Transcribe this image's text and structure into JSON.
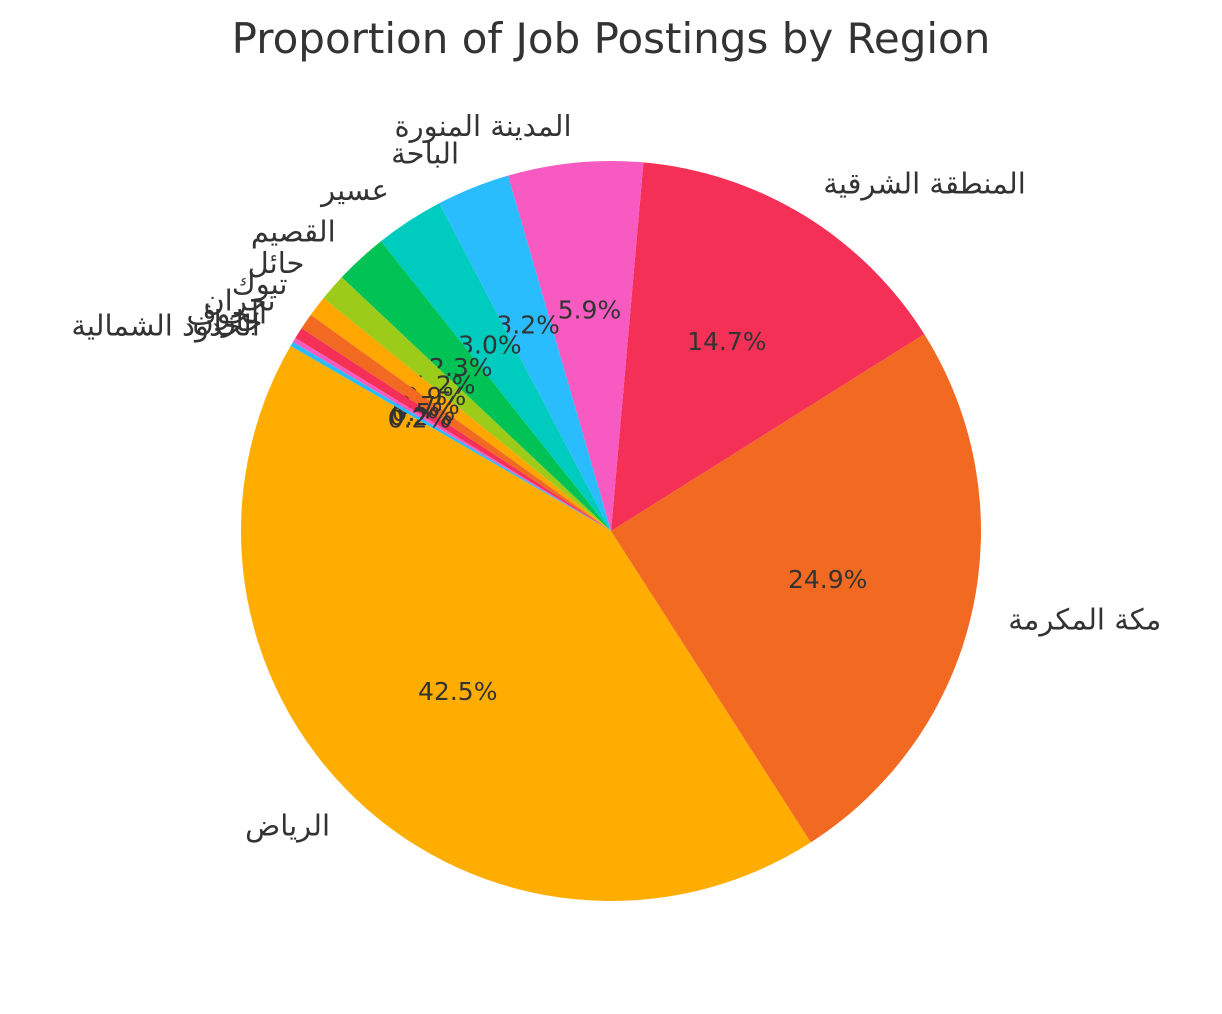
{
  "chart_data": {
    "type": "pie",
    "title": "Proportion of Job Postings by Region",
    "autopct_format": "{v}%",
    "start_angle_deg": 150,
    "direction": "counterclockwise",
    "slices": [
      {
        "label": "الرياض",
        "value": 42.5,
        "color": "#FFAD00"
      },
      {
        "label": "مكة المكرمة",
        "value": 24.9,
        "color": "#F26A21"
      },
      {
        "label": "المنطقة الشرقية",
        "value": 14.7,
        "color": "#F53057"
      },
      {
        "label": "المدينة المنورة",
        "value": 5.9,
        "color": "#F75AC0"
      },
      {
        "label": "الباحة",
        "value": 3.2,
        "color": "#29BDFD"
      },
      {
        "label": "عسير",
        "value": 3.0,
        "color": "#00CBBF"
      },
      {
        "label": "القصيم",
        "value": 2.3,
        "color": "#01C254"
      },
      {
        "label": "حائل",
        "value": 1.2,
        "color": "#9CCB19"
      },
      {
        "label": "تبوك",
        "value": 0.9,
        "color": "#FFA600"
      },
      {
        "label": "نجران",
        "value": 0.7,
        "color": "#F26A21"
      },
      {
        "label": "الجوف",
        "value": 0.5,
        "color": "#F53057"
      },
      {
        "label": "جازان",
        "value": 0.2,
        "color": "#F75AC0"
      },
      {
        "label": "الحدود الشمالية",
        "value": 0.2,
        "color": "#29BDFD"
      }
    ]
  }
}
